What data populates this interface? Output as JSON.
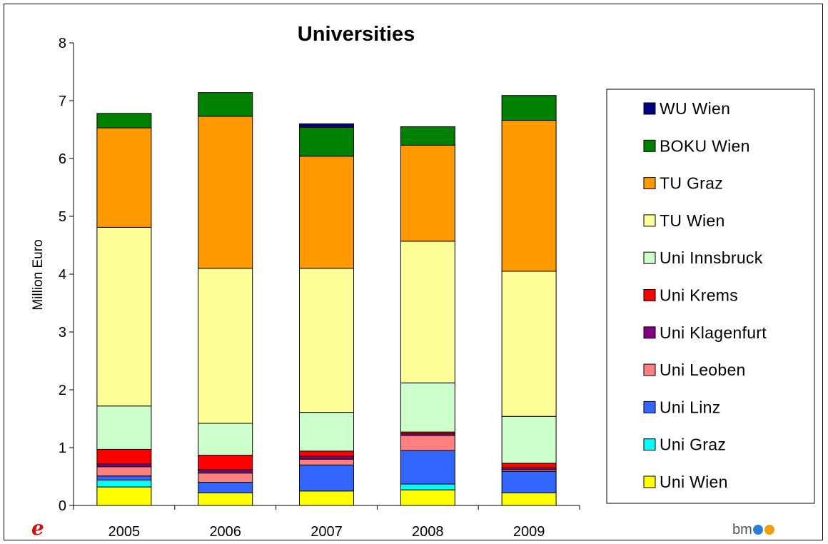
{
  "chart_data": {
    "type": "bar",
    "stacked": true,
    "title": "Universities",
    "xlabel": "",
    "ylabel": "Million Euro",
    "ylim": [
      0,
      8
    ],
    "yticks": [
      0,
      1,
      2,
      3,
      4,
      5,
      6,
      7,
      8
    ],
    "grid": false,
    "legend_position": "right",
    "categories": [
      "2005",
      "2006",
      "2007",
      "2008",
      "2009"
    ],
    "series": [
      {
        "name": "Uni Wien",
        "color": "#FFFF00",
        "values": [
          0.32,
          0.22,
          0.25,
          0.27,
          0.22
        ]
      },
      {
        "name": "Uni Graz",
        "color": "#00FFFF",
        "values": [
          0.12,
          0.0,
          0.0,
          0.1,
          0.0
        ]
      },
      {
        "name": "Uni Linz",
        "color": "#3366FF",
        "values": [
          0.07,
          0.18,
          0.45,
          0.58,
          0.37
        ]
      },
      {
        "name": "Uni Leoben",
        "color": "#FF8080",
        "values": [
          0.16,
          0.16,
          0.1,
          0.26,
          0.03
        ]
      },
      {
        "name": "Uni Klagenfurt",
        "color": "#800080",
        "values": [
          0.05,
          0.06,
          0.05,
          0.03,
          0.03
        ]
      },
      {
        "name": "Uni Krems",
        "color": "#FF0000",
        "values": [
          0.25,
          0.25,
          0.09,
          0.03,
          0.08
        ]
      },
      {
        "name": "Uni Innsbruck",
        "color": "#CCFFCC",
        "values": [
          0.75,
          0.55,
          0.67,
          0.85,
          0.81
        ]
      },
      {
        "name": "TU Wien",
        "color": "#FFFF99",
        "values": [
          3.09,
          2.68,
          2.49,
          2.45,
          2.51
        ]
      },
      {
        "name": "TU Graz",
        "color": "#FF9900",
        "values": [
          1.72,
          2.63,
          1.94,
          1.66,
          2.61
        ]
      },
      {
        "name": "BOKU Wien",
        "color": "#008000",
        "values": [
          0.25,
          0.41,
          0.5,
          0.32,
          0.43
        ]
      },
      {
        "name": "WU Wien",
        "color": "#000080",
        "values": [
          0.0,
          0.0,
          0.06,
          0.0,
          0.0
        ]
      }
    ]
  },
  "logos": {
    "left_mark": "e",
    "right_prefix": "bm",
    "right_suffix": ""
  }
}
